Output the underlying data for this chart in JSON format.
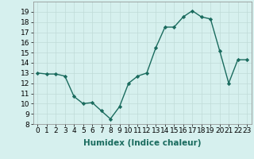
{
  "x": [
    0,
    1,
    2,
    3,
    4,
    5,
    6,
    7,
    8,
    9,
    10,
    11,
    12,
    13,
    14,
    15,
    16,
    17,
    18,
    19,
    20,
    21,
    22,
    23
  ],
  "y": [
    13.0,
    12.9,
    12.9,
    12.7,
    10.7,
    10.0,
    10.1,
    9.3,
    8.5,
    9.7,
    12.0,
    12.7,
    13.0,
    15.5,
    17.5,
    17.5,
    18.5,
    19.1,
    18.5,
    18.3,
    15.2,
    12.0,
    14.3,
    14.3
  ],
  "xlabel": "Humidex (Indice chaleur)",
  "xlim": [
    -0.5,
    23.5
  ],
  "ylim": [
    8,
    20
  ],
  "yticks": [
    8,
    9,
    10,
    11,
    12,
    13,
    14,
    15,
    16,
    17,
    18,
    19
  ],
  "xticks": [
    0,
    1,
    2,
    3,
    4,
    5,
    6,
    7,
    8,
    9,
    10,
    11,
    12,
    13,
    14,
    15,
    16,
    17,
    18,
    19,
    20,
    21,
    22,
    23
  ],
  "line_color": "#1a6b5e",
  "marker": "D",
  "marker_size": 2.2,
  "bg_color": "#d6f0ee",
  "grid_color": "#c0dbd8",
  "xlabel_fontsize": 7.5,
  "tick_fontsize": 6.5,
  "line_width": 1.0
}
